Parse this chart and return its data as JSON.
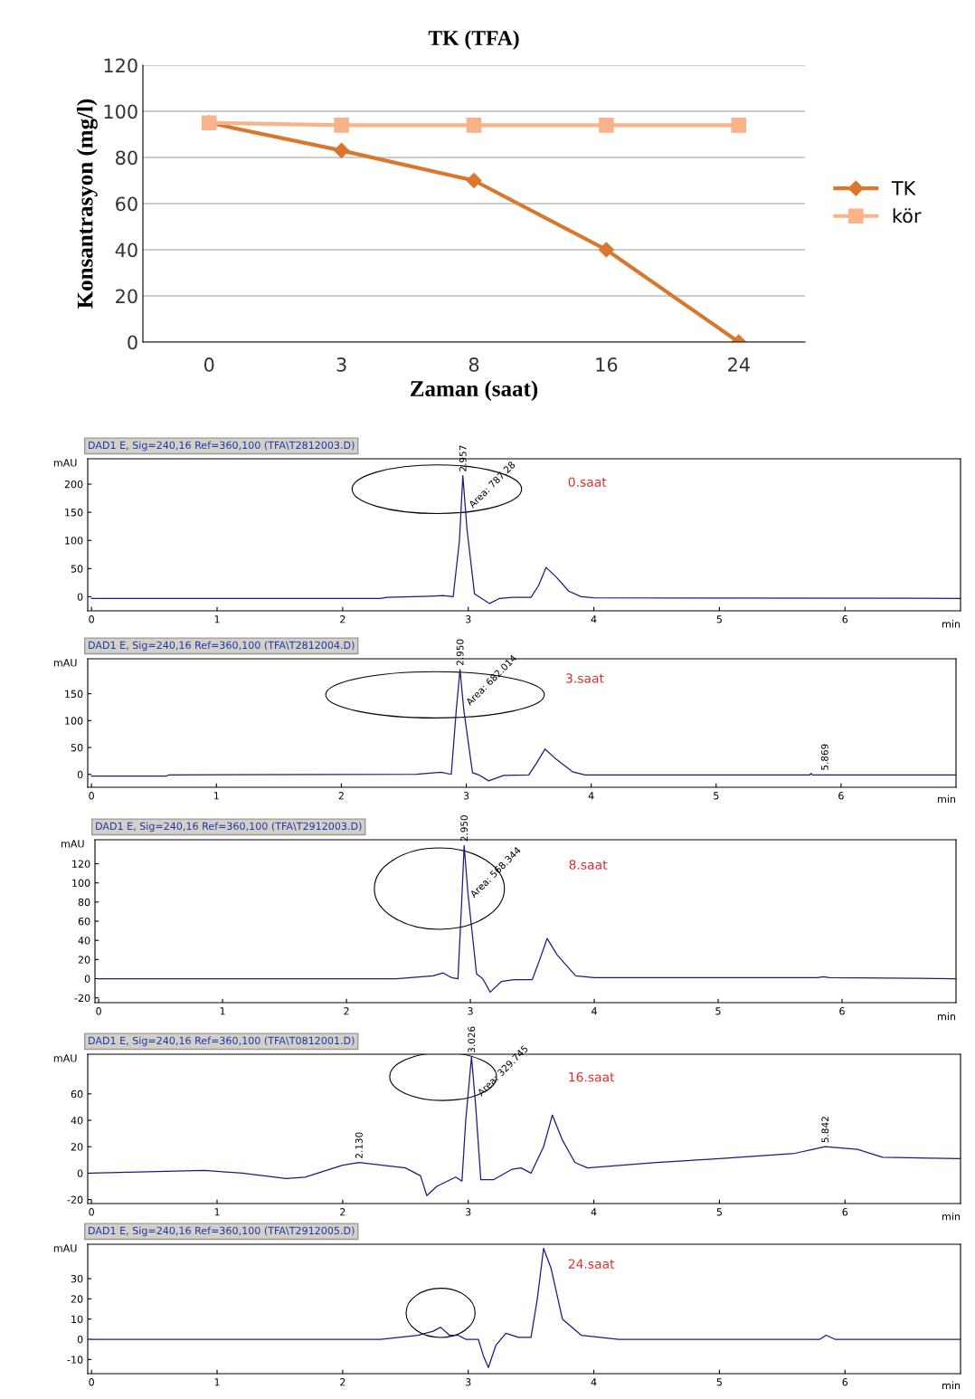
{
  "chart_data": [
    {
      "type": "line",
      "title": "TK (TFA)",
      "xlabel": "Zaman (saat)",
      "ylabel": "Konsantrasyon (mg/l)",
      "categories": [
        "0",
        "3",
        "8",
        "16",
        "24"
      ],
      "ylim": [
        0,
        120
      ],
      "yticks": [
        0,
        20,
        40,
        60,
        80,
        100,
        120
      ],
      "grid": "y",
      "legend": "right",
      "series": [
        {
          "name": "TK",
          "color": "#d9782d",
          "marker": "diamond",
          "values": [
            95,
            83,
            70,
            40,
            0
          ]
        },
        {
          "name": "kör",
          "color": "#f9b38b",
          "marker": "square",
          "values": [
            95,
            94,
            94,
            94,
            94
          ]
        }
      ]
    },
    {
      "type": "line",
      "title": "DAD1 E, Sig=240,16 Ref=360,100 (TFA\\T2812003.D)",
      "xlabel": "min",
      "ylabel": "mAU",
      "xlim": [
        -0.03,
        6.92
      ],
      "xticks": [
        0,
        1,
        2,
        3,
        4,
        5,
        6
      ],
      "ylim": [
        -25,
        245
      ],
      "yticks": [
        0,
        50,
        100,
        150,
        200
      ],
      "annotations": [
        {
          "text": "2.957",
          "x": 2.957,
          "y": 215
        },
        {
          "text": "Area: 787.28",
          "x": 2.957,
          "y": 150
        },
        "0.saat"
      ],
      "series": [
        {
          "color": "#1a1a80",
          "x": [
            0,
            2.3,
            2.35,
            2.7,
            2.8,
            2.88,
            2.93,
            2.957,
            2.99,
            3.05,
            3.1,
            3.17,
            3.25,
            3.35,
            3.5,
            3.56,
            3.62,
            3.7,
            3.8,
            3.9,
            4.0,
            6.92
          ],
          "values": [
            -3,
            -3,
            -1,
            1,
            2,
            0,
            100,
            215,
            120,
            5,
            -2,
            -12,
            -3,
            -1,
            -1,
            20,
            52,
            35,
            10,
            0,
            -2,
            -3
          ]
        }
      ]
    },
    {
      "type": "line",
      "title": "DAD1 E, Sig=240,16 Ref=360,100 (TFA\\T2812004.D)",
      "xlabel": "min",
      "ylabel": "mAU",
      "xlim": [
        -0.03,
        6.92
      ],
      "xticks": [
        0,
        1,
        2,
        3,
        4,
        5,
        6
      ],
      "ylim": [
        -24,
        215
      ],
      "yticks": [
        0,
        50,
        100,
        150
      ],
      "annotations": [
        {
          "text": "2.950",
          "x": 2.95,
          "y": 195
        },
        {
          "text": "Area: 682.014",
          "x": 2.95,
          "y": 120
        },
        {
          "text": "5.869",
          "x": 5.869,
          "y": 0
        },
        "3.saat"
      ],
      "series": [
        {
          "color": "#1a1a80",
          "x": [
            0,
            0.6,
            0.62,
            2.6,
            2.8,
            2.88,
            2.92,
            2.95,
            2.98,
            3.05,
            3.1,
            3.18,
            3.3,
            3.5,
            3.56,
            3.63,
            3.72,
            3.85,
            3.95,
            5.75,
            5.76,
            5.77,
            6.05,
            6.92
          ],
          "values": [
            -3,
            -3,
            -1,
            0,
            4,
            0,
            120,
            195,
            120,
            3,
            -1,
            -12,
            -2,
            -1,
            20,
            47,
            28,
            5,
            -1,
            -1,
            2,
            -1,
            -1,
            -1
          ]
        }
      ]
    },
    {
      "type": "line",
      "title": "DAD1 E, Sig=240,16 Ref=360,100 (TFA\\T2912003.D)",
      "xlabel": "min",
      "ylabel": "mAU",
      "xlim": [
        -0.03,
        6.92
      ],
      "xticks": [
        0,
        1,
        2,
        3,
        4,
        5,
        6
      ],
      "ylim": [
        -25,
        145
      ],
      "yticks": [
        -20,
        0,
        20,
        40,
        60,
        80,
        100,
        120
      ],
      "annotations": [
        {
          "text": "2.950",
          "x": 2.95,
          "y": 139
        },
        {
          "text": "Area: 568.344",
          "x": 2.95,
          "y": 80
        },
        "8.saat"
      ],
      "series": [
        {
          "color": "#1a1a80",
          "x": [
            0,
            2.4,
            2.7,
            2.78,
            2.85,
            2.9,
            2.93,
            2.95,
            2.98,
            3.05,
            3.1,
            3.16,
            3.25,
            3.35,
            3.5,
            3.56,
            3.62,
            3.7,
            3.85,
            4.0,
            5.8,
            5.85,
            5.9,
            6.92
          ],
          "values": [
            0,
            0,
            3,
            6,
            1,
            0,
            80,
            139,
            90,
            5,
            0,
            -14,
            -3,
            -1,
            -1,
            20,
            42,
            25,
            3,
            1,
            1,
            2,
            1,
            0
          ]
        }
      ]
    },
    {
      "type": "line",
      "title": "DAD1 E, Sig=240,16 Ref=360,100 (TFA\\T0812001.D)",
      "xlabel": "min",
      "ylabel": "mAU",
      "xlim": [
        -0.03,
        6.92
      ],
      "xticks": [
        0,
        1,
        2,
        3,
        4,
        5,
        6
      ],
      "ylim": [
        -23,
        90
      ],
      "yticks": [
        -20,
        0,
        20,
        40,
        60
      ],
      "annotations": [
        {
          "text": "3.026",
          "x": 3.026,
          "y": 88
        },
        {
          "text": "Area: 329.745",
          "x": 3.026,
          "y": 55
        },
        {
          "text": "2.130",
          "x": 2.13,
          "y": 8
        },
        {
          "text": "5.842",
          "x": 5.842,
          "y": 20
        },
        "16.saat"
      ],
      "series": [
        {
          "color": "#1a1a80",
          "x": [
            0,
            0.9,
            1.2,
            1.55,
            1.7,
            2.0,
            2.13,
            2.5,
            2.62,
            2.67,
            2.75,
            2.9,
            2.95,
            2.98,
            3.026,
            3.06,
            3.1,
            3.2,
            3.35,
            3.42,
            3.5,
            3.6,
            3.67,
            3.75,
            3.85,
            3.95,
            4.5,
            5.0,
            5.6,
            5.842,
            6.1,
            6.3,
            6.92
          ],
          "values": [
            0,
            2,
            0,
            -4,
            -3,
            6,
            8,
            4,
            -2,
            -17,
            -10,
            -3,
            -6,
            40,
            88,
            50,
            -5,
            -5,
            3,
            4,
            0,
            20,
            44,
            25,
            8,
            4,
            8,
            11,
            15,
            20,
            18,
            12,
            11
          ]
        }
      ]
    },
    {
      "type": "line",
      "title": "DAD1 E, Sig=240,16 Ref=360,100 (TFA\\T2912005.D)",
      "xlabel": "min",
      "ylabel": "mAU",
      "xlim": [
        -0.03,
        6.92
      ],
      "xticks": [
        0,
        1,
        2,
        3,
        4,
        5,
        6
      ],
      "ylim": [
        -17,
        47
      ],
      "yticks": [
        -10,
        0,
        10,
        20,
        30
      ],
      "annotations": [
        "24.saat"
      ],
      "series": [
        {
          "color": "#1a1a80",
          "x": [
            0,
            2.3,
            2.6,
            2.72,
            2.78,
            2.85,
            2.92,
            2.98,
            3.08,
            3.12,
            3.16,
            3.22,
            3.3,
            3.4,
            3.5,
            3.55,
            3.6,
            3.66,
            3.75,
            3.9,
            4.2,
            5.8,
            5.85,
            5.92,
            6.92
          ],
          "values": [
            0,
            0,
            2,
            4,
            6,
            2,
            2,
            0,
            0,
            -8,
            -14,
            -3,
            3,
            1,
            1,
            20,
            45,
            35,
            10,
            2,
            0,
            0,
            2,
            0,
            0
          ]
        }
      ]
    }
  ]
}
